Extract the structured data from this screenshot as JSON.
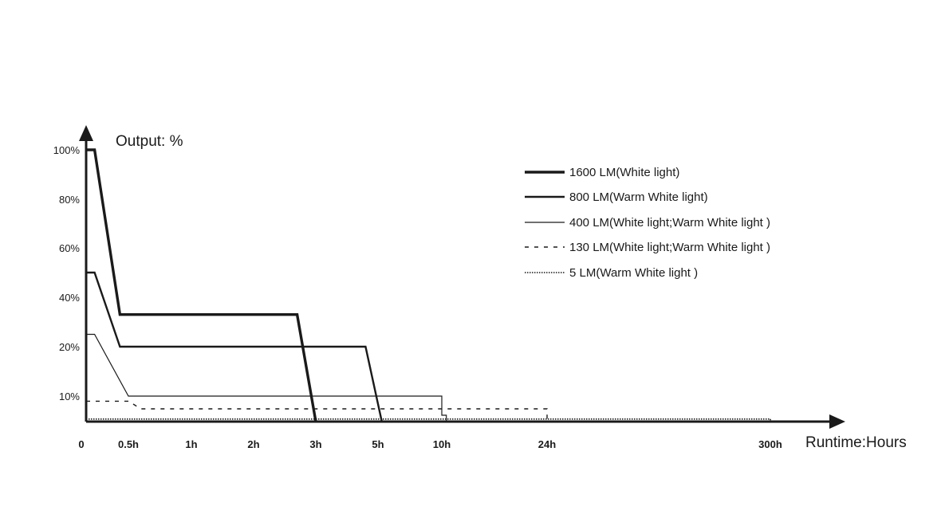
{
  "chart_data": {
    "type": "line",
    "ylabel": "Output: %",
    "xlabel": "Runtime:Hours",
    "x_ticks": [
      "0",
      "0.5h",
      "1h",
      "2h",
      "3h",
      "5h",
      "10h",
      "24h",
      "300h"
    ],
    "y_ticks": [
      "100%",
      "80%",
      "60%",
      "40%",
      "20%",
      "10%"
    ],
    "grid": false,
    "legend_position": "top-right",
    "series": [
      {
        "name": "1600 LM(White light)",
        "style": "thick",
        "points": [
          [
            0,
            100
          ],
          [
            0.1,
            100
          ],
          [
            0.4,
            33
          ],
          [
            2.7,
            33
          ],
          [
            3,
            0
          ]
        ]
      },
      {
        "name": "800 LM(Warm White light)",
        "style": "medium",
        "points": [
          [
            0,
            50
          ],
          [
            0.1,
            50
          ],
          [
            0.4,
            20
          ],
          [
            4.6,
            20
          ],
          [
            5.3,
            0
          ]
        ]
      },
      {
        "name": "400 LM(White light;Warm White light )",
        "style": "thin",
        "points": [
          [
            0,
            25
          ],
          [
            0.1,
            25
          ],
          [
            0.5,
            10
          ],
          [
            10,
            10
          ],
          [
            10,
            2.5
          ],
          [
            10.6,
            2.5
          ],
          [
            10.6,
            0
          ]
        ]
      },
      {
        "name": "130 LM(White light;Warm White light )",
        "style": "dashed",
        "points": [
          [
            0,
            8
          ],
          [
            0.5,
            8
          ],
          [
            0.6,
            5
          ],
          [
            24,
            5
          ],
          [
            24,
            0
          ]
        ]
      },
      {
        "name": "5 LM(Warm White light )",
        "style": "dotted",
        "points": [
          [
            0,
            1
          ],
          [
            300,
            1
          ],
          [
            300,
            0
          ]
        ]
      }
    ]
  }
}
